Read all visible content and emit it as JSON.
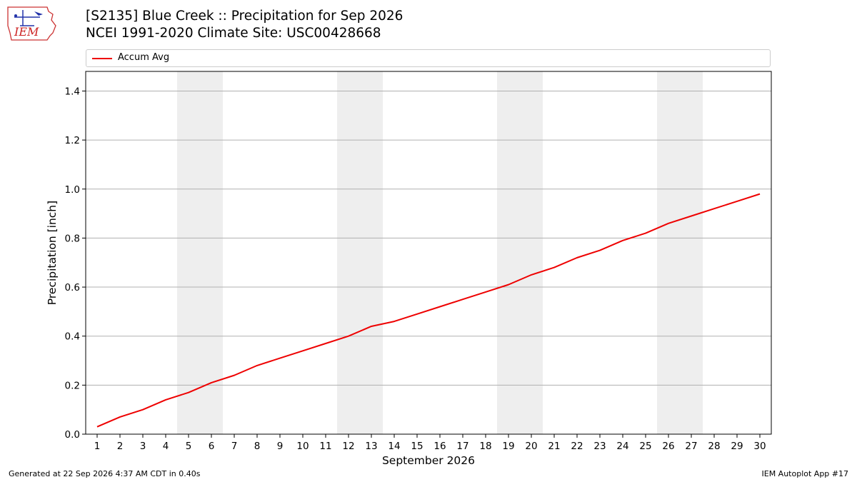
{
  "header": {
    "title": "[S2135] Blue Creek :: Precipitation for Sep 2026",
    "subtitle": "NCEI 1991-2020 Climate Site: USC00428668",
    "logo_text": "IEM"
  },
  "footer": {
    "generated": "Generated at 22 Sep 2026 4:37 AM CDT in 0.40s",
    "app": "IEM Autoplot App #17"
  },
  "chart_data": {
    "type": "line",
    "title": "[S2135] Blue Creek :: Precipitation for Sep 2026",
    "subtitle": "NCEI 1991-2020 Climate Site: USC00428668",
    "xlabel": "September 2026",
    "ylabel": "Precipitation [inch]",
    "x": [
      1,
      2,
      3,
      4,
      5,
      6,
      7,
      8,
      9,
      10,
      11,
      12,
      13,
      14,
      15,
      16,
      17,
      18,
      19,
      20,
      21,
      22,
      23,
      24,
      25,
      26,
      27,
      28,
      29,
      30
    ],
    "xlim": [
      0.5,
      30.5
    ],
    "ylim": [
      0,
      1.48
    ],
    "yticks": [
      0.0,
      0.2,
      0.4,
      0.6,
      0.8,
      1.0,
      1.2,
      1.4
    ],
    "ytick_labels": [
      "0.0",
      "0.2",
      "0.4",
      "0.6",
      "0.8",
      "1.0",
      "1.2",
      "1.4"
    ],
    "xtick_labels": [
      "1",
      "2",
      "3",
      "4",
      "5",
      "6",
      "7",
      "8",
      "9",
      "10",
      "11",
      "12",
      "13",
      "14",
      "15",
      "16",
      "17",
      "18",
      "19",
      "20",
      "21",
      "22",
      "23",
      "24",
      "25",
      "26",
      "27",
      "28",
      "29",
      "30"
    ],
    "grid": "horizontal",
    "legend": "top",
    "weekend_shading": [
      [
        5,
        6
      ],
      [
        12,
        13
      ],
      [
        19,
        20
      ],
      [
        26,
        27
      ]
    ],
    "shading_color": "#eeeeee",
    "series": [
      {
        "name": "Accum Avg",
        "color": "#ee0000",
        "values": [
          0.03,
          0.07,
          0.1,
          0.14,
          0.17,
          0.21,
          0.24,
          0.28,
          0.31,
          0.34,
          0.37,
          0.4,
          0.44,
          0.46,
          0.49,
          0.52,
          0.55,
          0.58,
          0.61,
          0.65,
          0.68,
          0.72,
          0.75,
          0.79,
          0.82,
          0.86,
          0.89,
          0.92,
          0.95,
          0.98
        ]
      }
    ]
  }
}
